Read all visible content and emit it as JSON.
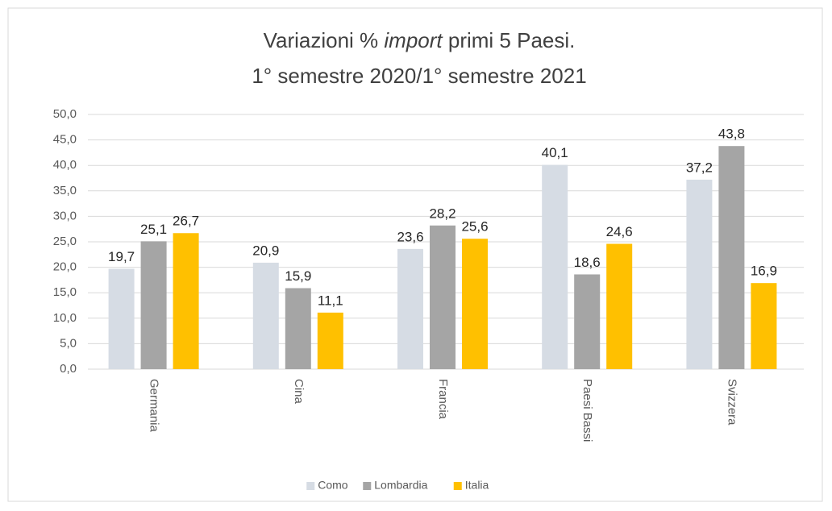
{
  "chart_data": {
    "type": "bar",
    "title": [
      "Variazioni % ",
      "import",
      " primi 5 Paesi.",
      "1° semestre 2020/1° semestre 2021"
    ],
    "categories": [
      "Germania",
      "Cina",
      "Francia",
      "Paesi Bassi",
      "Svizzera"
    ],
    "series": [
      {
        "name": "Como",
        "color": "#d6dce4",
        "values": [
          19.7,
          20.9,
          23.6,
          40.1,
          37.2
        ],
        "value_labels": [
          "19,7",
          "20,9",
          "23,6",
          "40,1",
          "37,2"
        ]
      },
      {
        "name": "Lombardia",
        "color": "#a5a5a5",
        "values": [
          25.1,
          15.9,
          28.2,
          18.6,
          43.8
        ],
        "value_labels": [
          "25,1",
          "15,9",
          "28,2",
          "18,6",
          "43,8"
        ]
      },
      {
        "name": "Italia",
        "color": "#ffc000",
        "values": [
          26.7,
          11.1,
          25.6,
          24.6,
          16.9
        ],
        "value_labels": [
          "26,7",
          "11,1",
          "25,6",
          "24,6",
          "16,9"
        ]
      }
    ],
    "ylim": [
      0,
      50
    ],
    "yticks": [
      {
        "value": 0,
        "label": "0,0"
      },
      {
        "value": 5,
        "label": "5,0"
      },
      {
        "value": 10,
        "label": "10,0"
      },
      {
        "value": 15,
        "label": "15,0"
      },
      {
        "value": 20,
        "label": "20,0"
      },
      {
        "value": 25,
        "label": "25,0"
      },
      {
        "value": 30,
        "label": "30,0"
      },
      {
        "value": 35,
        "label": "35,0"
      },
      {
        "value": 40,
        "label": "40,0"
      },
      {
        "value": 45,
        "label": "45,0"
      },
      {
        "value": 50,
        "label": "50,0"
      }
    ],
    "grid": true,
    "legend": "bottom"
  }
}
